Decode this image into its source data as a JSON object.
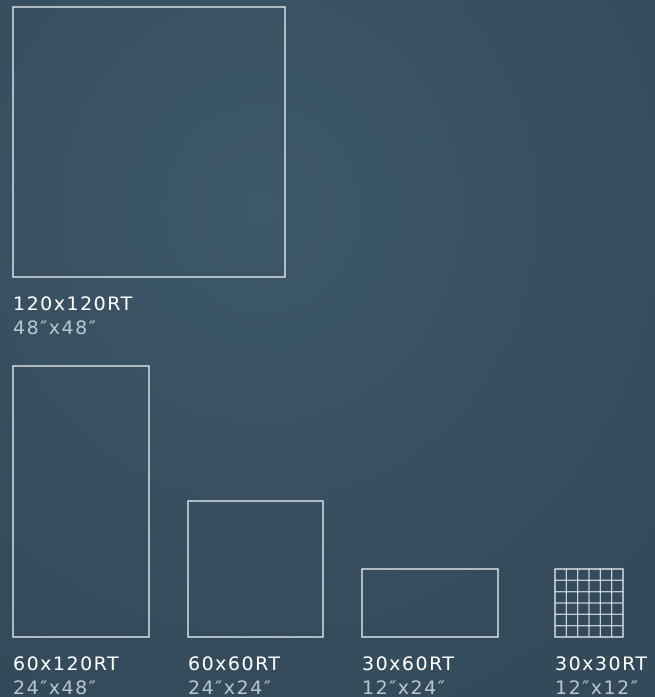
{
  "tiles": [
    {
      "label": "120x120RT",
      "size": "48″x48″"
    },
    {
      "label": "60x120RT",
      "size": "24″x48″"
    },
    {
      "label": "60x60RT",
      "size": "24″x24″"
    },
    {
      "label": "30x60RT",
      "size": "12″x24″"
    },
    {
      "label": "30x30RT",
      "size": "12″x12″"
    }
  ]
}
